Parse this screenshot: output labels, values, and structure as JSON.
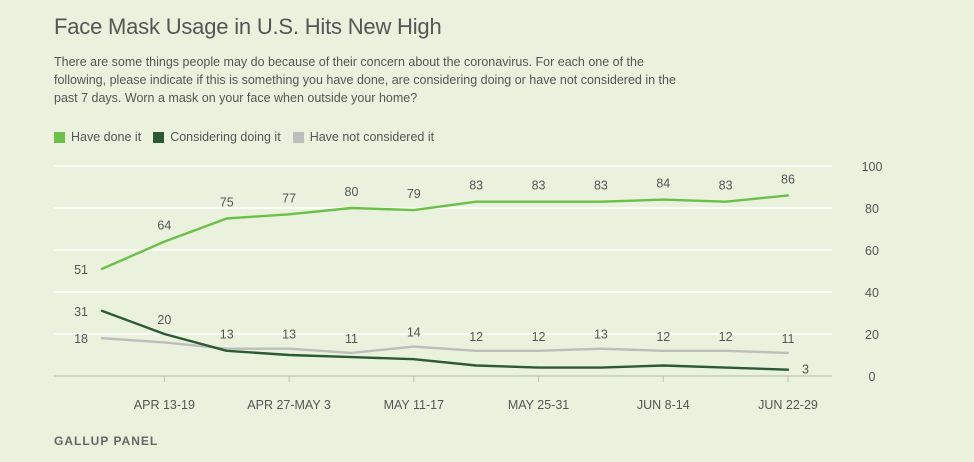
{
  "title": "Face Mask Usage in U.S. Hits New High",
  "subtitle": "There are some things people may do because of their concern about the coronavirus. For each one of the following, please indicate if this is something you have done, are considering doing or have not considered in the past 7 days. Worn a mask on your face when outside your home?",
  "footer": "GALLUP PANEL",
  "chart_data": {
    "type": "line",
    "x": [
      "",
      "APR 13-19",
      "",
      "APR 27-MAY 3",
      "",
      "MAY 11-17",
      "",
      "MAY 25-31",
      "",
      "JUN 8-14",
      "",
      "JUN 22-29"
    ],
    "series": [
      {
        "name": "Have done it",
        "color": "#6cc04a",
        "values": [
          51,
          64,
          75,
          77,
          80,
          79,
          83,
          83,
          83,
          84,
          83,
          86
        ]
      },
      {
        "name": "Considering doing it",
        "color": "#2b5a34",
        "values": [
          31,
          20,
          12,
          10,
          9,
          8,
          5,
          4,
          4,
          5,
          4,
          3
        ]
      },
      {
        "name": "Have not considered it",
        "color": "#bdbdbd",
        "values": [
          18,
          16,
          13,
          13,
          11,
          14,
          12,
          12,
          13,
          12,
          12,
          11
        ]
      }
    ],
    "data_labels": {
      "Have done it": [
        "51",
        "64",
        "75",
        "77",
        "80",
        "79",
        "83",
        "83",
        "83",
        "84",
        "83",
        "86"
      ],
      "Considering doing it": [
        "31",
        "20",
        "",
        "",
        "",
        "",
        "",
        "",
        "",
        "",
        "",
        "3"
      ],
      "Have not considered it": [
        "18",
        "",
        "13",
        "13",
        "11",
        "14",
        "12",
        "12",
        "13",
        "12",
        "12",
        "11"
      ]
    },
    "yticks": [
      0,
      20,
      40,
      60,
      80,
      100
    ],
    "ylim": [
      0,
      100
    ],
    "grid": true,
    "legend": "top-left"
  }
}
